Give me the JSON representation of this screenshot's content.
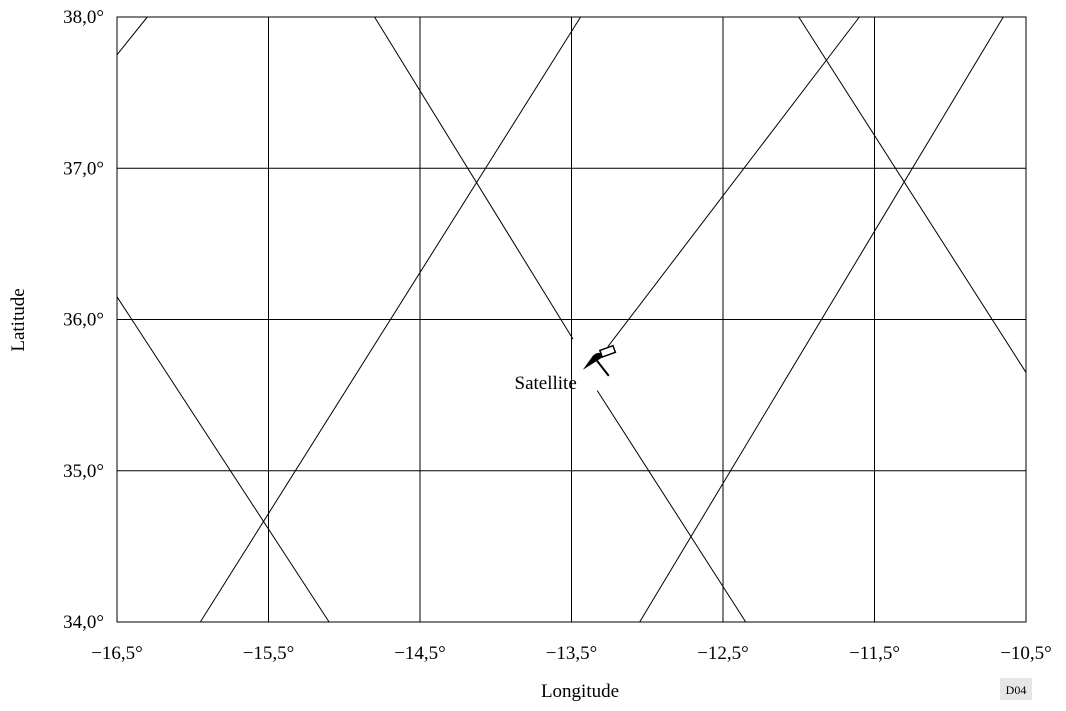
{
  "chart_data": {
    "type": "line",
    "xlabel": "Longitude",
    "ylabel": "Latitude",
    "xlim": [
      -16.5,
      -10.5
    ],
    "ylim": [
      34,
      38
    ],
    "xticks": [
      {
        "value": -16.5,
        "label": "−16,5°"
      },
      {
        "value": -15.5,
        "label": "−15,5°"
      },
      {
        "value": -14.5,
        "label": "−14,5°"
      },
      {
        "value": -13.5,
        "label": "−13,5°"
      },
      {
        "value": -12.5,
        "label": "−12,5°"
      },
      {
        "value": -11.5,
        "label": "−11,5°"
      },
      {
        "value": -10.5,
        "label": "−10,5°"
      }
    ],
    "yticks": [
      {
        "value": 34,
        "label": "34,0°"
      },
      {
        "value": 35,
        "label": "35,0°"
      },
      {
        "value": 36,
        "label": "36,0°"
      },
      {
        "value": 37,
        "label": "37,0°"
      },
      {
        "value": 38,
        "label": "38,0°"
      }
    ],
    "grid": true,
    "color": "#000000",
    "series": [
      {
        "x": [
          -16.5,
          -16.3
        ],
        "values": [
          37.75,
          38
        ]
      },
      {
        "x": [
          -16.5,
          -15.1
        ],
        "values": [
          36.15,
          34
        ]
      },
      {
        "x": [
          -15.95,
          -13.44
        ],
        "values": [
          34,
          38
        ]
      },
      {
        "x": [
          -14.8,
          -13.49
        ],
        "values": [
          38,
          35.87
        ]
      },
      {
        "x": [
          -13.33,
          -12.35
        ],
        "values": [
          35.53,
          34
        ]
      },
      {
        "x": [
          -13.26,
          -11.6
        ],
        "values": [
          35.82,
          38
        ]
      },
      {
        "x": [
          -13.05,
          -10.65
        ],
        "values": [
          34,
          38
        ]
      },
      {
        "x": [
          -12.0,
          -10.5
        ],
        "values": [
          38,
          35.65
        ]
      }
    ],
    "satellite": {
      "label": "Satellite",
      "x": -13.32,
      "y": 35.72
    },
    "figure_id": "D04"
  }
}
